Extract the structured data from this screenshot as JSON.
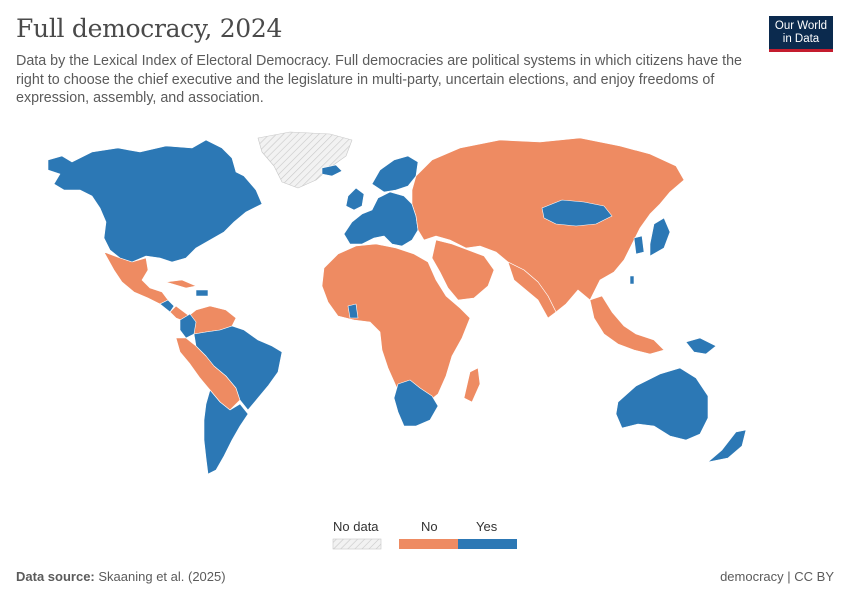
{
  "title": "Full democracy, 2024",
  "subtitle": "Data by the Lexical Index of Electoral Democracy. Full democracies are political systems in which citizens have the right to choose the chief executive and the legislature in multi-party, uncertain elections, and enjoy freedoms of expression, assembly, and association.",
  "logo": {
    "line1": "Our World",
    "line2": "in Data"
  },
  "legend": {
    "no_data": "No data",
    "no": "No",
    "yes": "Yes"
  },
  "colors": {
    "no": "#ee8b62",
    "yes": "#2c78b5",
    "no_data": "#e6e6e6",
    "border": "#ffffff"
  },
  "footer": {
    "source_label": "Data source:",
    "source_value": "Skaaning et al. (2025)",
    "right": "democracy | CC BY"
  },
  "map_data": {
    "year": 2024,
    "yes": [
      "Canada",
      "United States",
      "Brazil",
      "Argentina",
      "Chile",
      "Uruguay",
      "Colombia",
      "Guatemala",
      "Jamaica",
      "Dominican Republic",
      "Norway",
      "Sweden",
      "Finland",
      "United Kingdom",
      "Ireland",
      "France",
      "Spain",
      "Portugal",
      "Germany",
      "Italy",
      "Poland",
      "Romania",
      "Bulgaria",
      "Greece",
      "Mongolia",
      "Japan",
      "South Korea",
      "Taiwan",
      "Australia",
      "New Zealand",
      "South Africa",
      "Botswana",
      "Ghana",
      "Papua New Guinea",
      "Fiji",
      "Iceland"
    ],
    "no": [
      "Mexico",
      "Cuba",
      "Venezuela",
      "Peru",
      "Bolivia",
      "Paraguay",
      "Ecuador",
      "Russia",
      "China",
      "India",
      "Kazakhstan",
      "Iran",
      "Saudi Arabia",
      "Turkey",
      "Egypt",
      "Libya",
      "Algeria",
      "Morocco",
      "Nigeria",
      "DR Congo",
      "Angola",
      "Ethiopia",
      "Sudan",
      "Namibia",
      "Madagascar",
      "Indonesia",
      "Malaysia",
      "Thailand",
      "Pakistan",
      "Afghanistan"
    ],
    "no_data": [
      "Greenland"
    ]
  }
}
